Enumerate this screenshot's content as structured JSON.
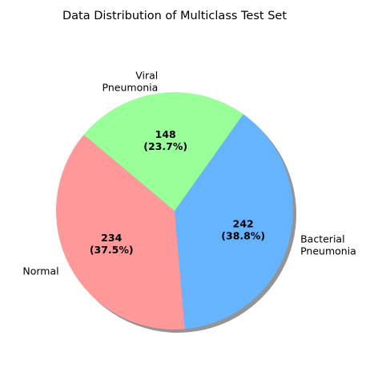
{
  "chart_data": {
    "type": "pie",
    "title": "Data Distribution of Multiclass Test Set",
    "slices": [
      {
        "label": "Normal",
        "label_lines": [
          "Normal"
        ],
        "value": 234,
        "value_text": "234",
        "percent_text": "(37.5%)",
        "color": "#ff9999"
      },
      {
        "label": "Bacterial Pneumonia",
        "label_lines": [
          "Bacterial",
          "Pneumonia"
        ],
        "value": 242,
        "value_text": "242",
        "percent_text": "(38.8%)",
        "color": "#66b3ff"
      },
      {
        "label": "Viral Pneumonia",
        "label_lines": [
          "Viral",
          "Pneumonia"
        ],
        "value": 148,
        "value_text": "148",
        "percent_text": "(23.7%)",
        "color": "#99ff99"
      }
    ],
    "start_angle_deg": 140,
    "direction": "counterclockwise",
    "shadow": true,
    "legend": "none"
  }
}
